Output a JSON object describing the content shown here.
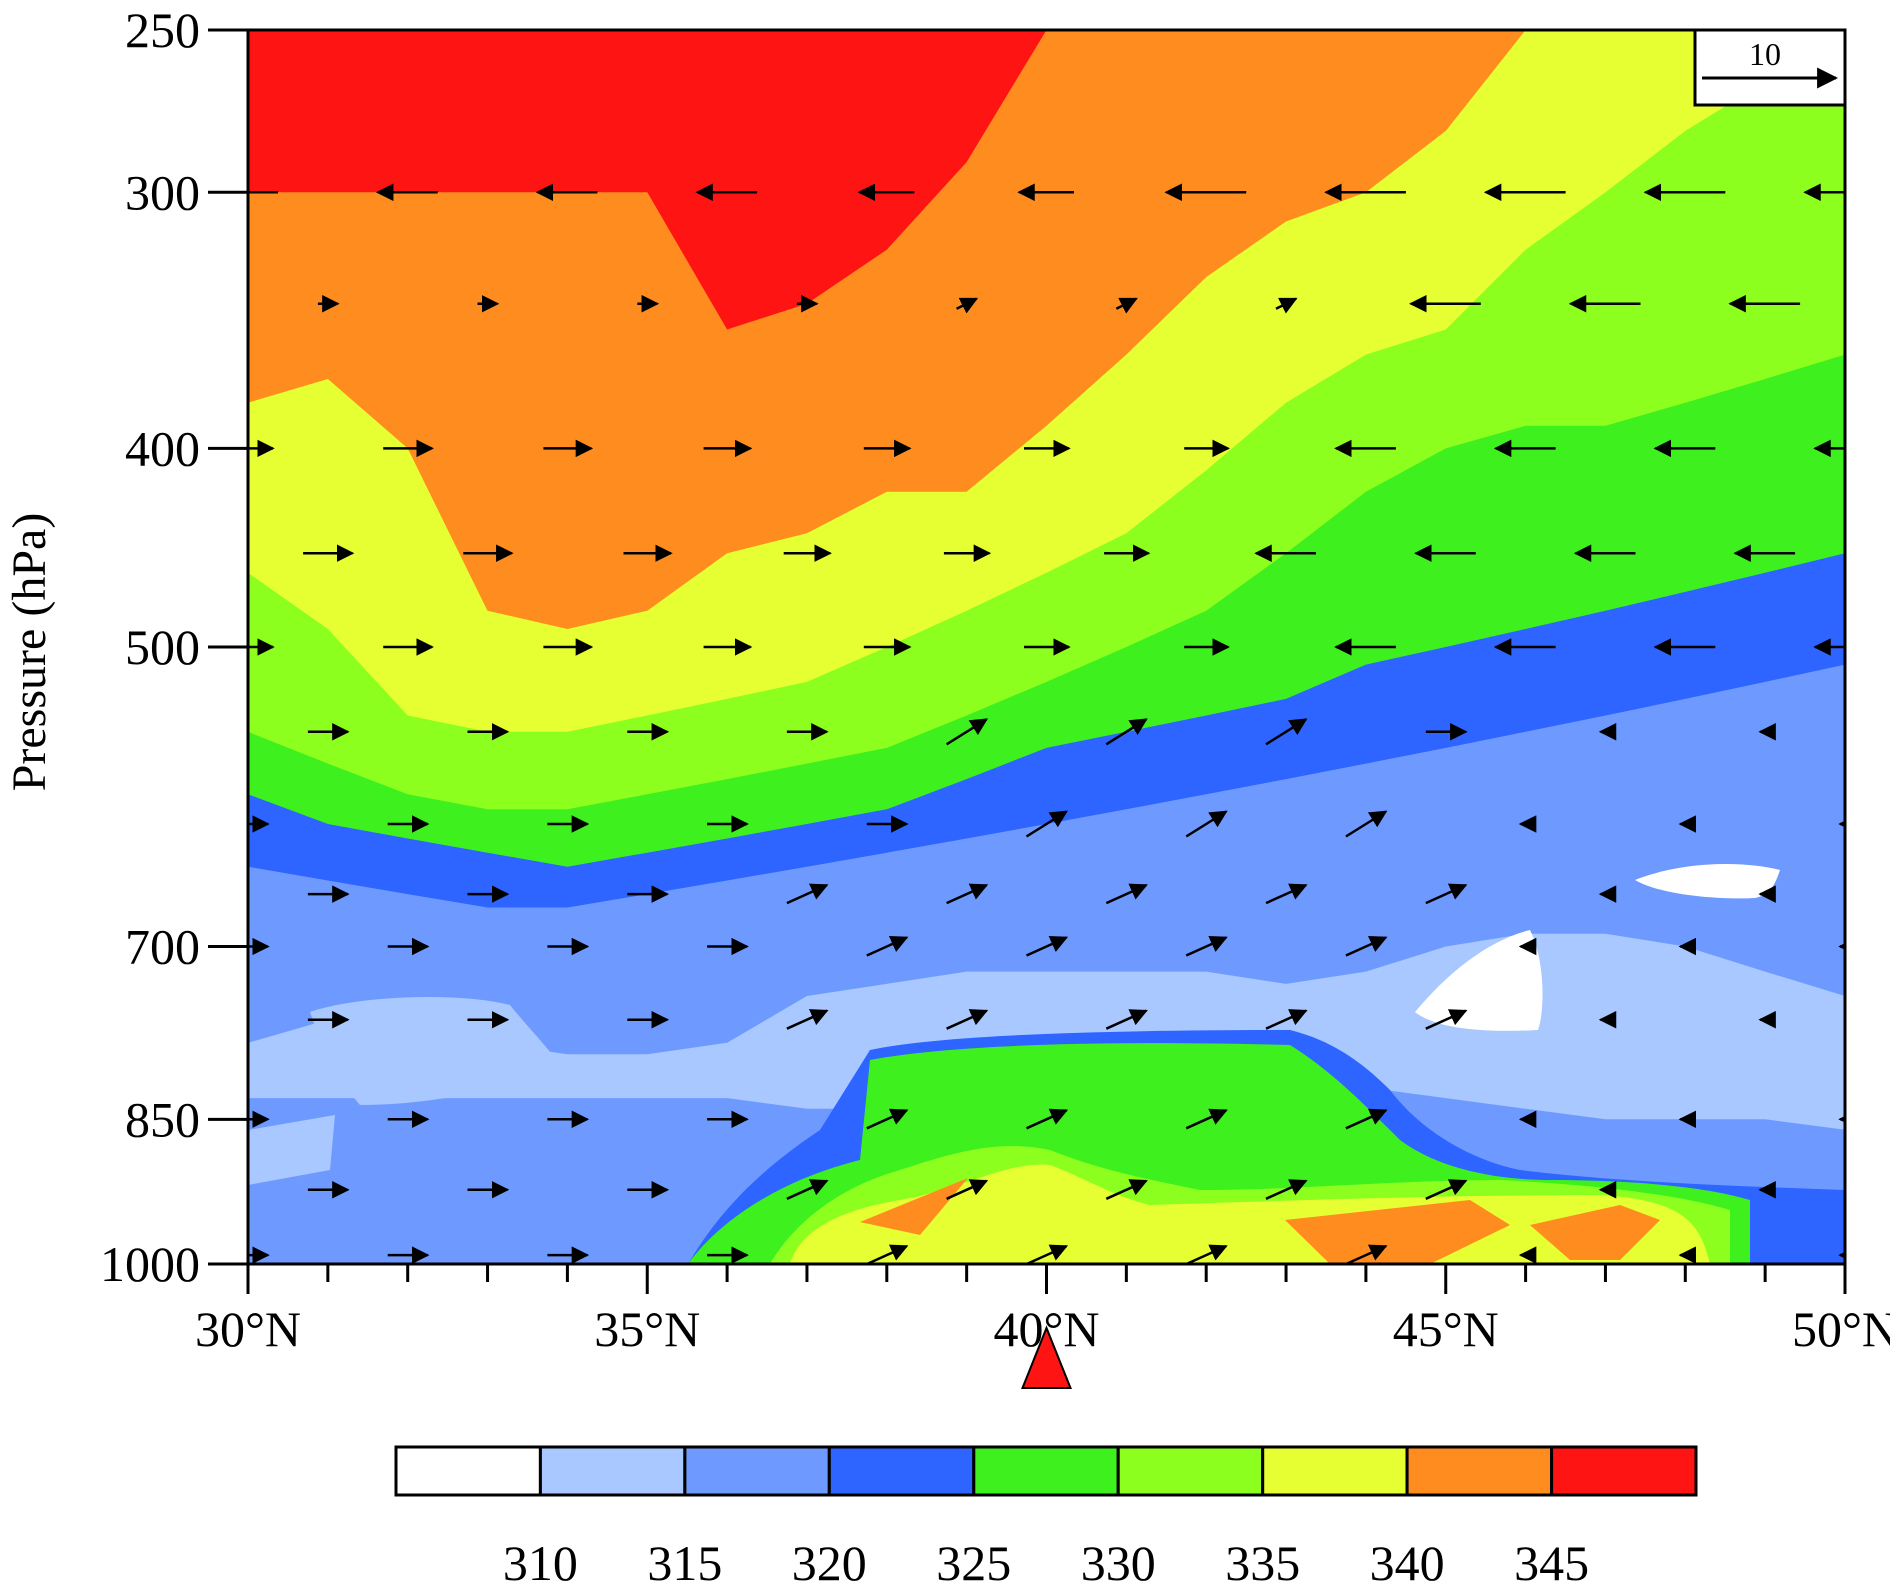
{
  "chart_data": {
    "type": "contour",
    "ylabel": "Pressure (hPa)",
    "xlabel": "",
    "x_ticks": [
      "30°N",
      "35°N",
      "40°N",
      "45°N",
      "50°N"
    ],
    "x_tick_values": [
      30,
      35,
      40,
      45,
      50
    ],
    "y_ticks": [
      "250",
      "300",
      "400",
      "500",
      "700",
      "850",
      "1000"
    ],
    "y_tick_values": [
      250,
      300,
      400,
      500,
      700,
      850,
      1000
    ],
    "xlim": [
      30,
      50
    ],
    "ylim": [
      250,
      1000
    ],
    "levels": [
      310,
      315,
      320,
      325,
      330,
      335,
      340,
      345
    ],
    "colorbar": {
      "labels": [
        "310",
        "315",
        "320",
        "325",
        "330",
        "335",
        "340",
        "345"
      ],
      "colors": [
        "#ffffff",
        "#a8c8ff",
        "#6e9aff",
        "#2e64ff",
        "#3ef01e",
        "#8cff1e",
        "#e6ff32",
        "#ff8c1e",
        "#ff1414"
      ]
    },
    "reference_vector": {
      "label": "10",
      "magnitude": 10
    },
    "marker": {
      "shape": "triangle",
      "lat": 40,
      "color": "#ff1414"
    },
    "field_bands": {
      "lats": [
        30,
        31,
        32,
        33,
        34,
        35,
        36,
        37,
        38,
        39,
        40,
        41,
        42,
        43,
        44,
        45,
        46,
        47,
        48,
        49,
        50
      ],
      "p345": [
        300,
        300,
        300,
        300,
        300,
        300,
        350,
        340,
        320,
        290,
        250,
        250,
        250,
        250,
        250,
        250,
        250,
        250,
        250,
        250,
        250
      ],
      "p340": [
        380,
        370,
        400,
        480,
        490,
        480,
        450,
        440,
        420,
        420,
        390,
        360,
        330,
        310,
        300,
        280,
        250,
        250,
        250,
        250,
        250
      ],
      "p335": [
        460,
        490,
        540,
        550,
        550,
        540,
        530,
        520,
        500,
        480,
        460,
        440,
        410,
        380,
        360,
        350,
        320,
        300,
        280,
        265,
        250
      ],
      "p330": [
        550,
        570,
        590,
        600,
        600,
        590,
        580,
        570,
        560,
        540,
        520,
        500,
        480,
        450,
        420,
        400,
        390,
        390,
        380,
        370,
        360
      ],
      "p325": [
        590,
        610,
        620,
        630,
        640,
        630,
        620,
        610,
        600,
        580,
        560,
        550,
        540,
        530,
        510,
        500,
        490,
        480,
        470,
        460,
        450
      ],
      "p320": [
        640,
        650,
        660,
        670,
        670,
        660,
        650,
        640,
        630,
        620,
        610,
        600,
        590,
        580,
        570,
        560,
        550,
        540,
        530,
        520,
        510
      ],
      "p315": [
        740,
        720,
        720,
        730,
        740,
        740,
        740,
        720,
        700,
        690,
        690,
        680,
        670,
        660,
        650,
        640,
        640,
        630,
        610,
        600,
        590
      ]
    },
    "wind_arrows_note": "vectors shown as cross-section wind (meridional/vertical)"
  }
}
